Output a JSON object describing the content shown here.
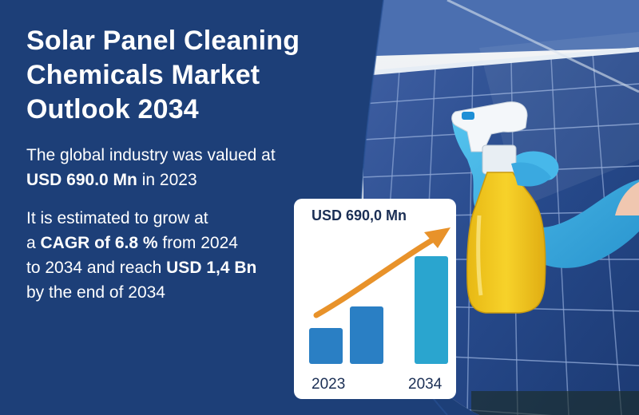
{
  "title_lines": [
    "Solar Panel Cleaning",
    "Chemicals Market",
    "Outlook 2034"
  ],
  "para1": {
    "line1": "The global industry was valued at",
    "value": "USD 690.0 Mn",
    "suffix": " in 2023"
  },
  "para2": {
    "line1": "It is estimated to grow at",
    "prefix2": "a ",
    "cagr": "CAGR of 6.8 %",
    "suffix2": " from 2024",
    "prefix3": "to 2034 and reach ",
    "target": "USD 1,4 Bn",
    "line4": "by the end of 2034"
  },
  "card": {
    "label": "USD 690,0 Mn",
    "year_start": "2023",
    "year_end": "2034"
  },
  "bars": [
    {
      "name": "bar-1",
      "level": 0.33
    },
    {
      "name": "bar-2",
      "level": 0.53
    },
    {
      "name": "bar-3",
      "level": 1.0
    }
  ],
  "colors": {
    "background": "#1d3f78",
    "panel": "#24427a",
    "bar": "#2a7fc4",
    "bar_highlight": "#2aa5cf",
    "arrow": "#e8922a",
    "glove": "#3ab4e6",
    "liquid": "#f0c51c"
  },
  "icons": [
    "solar-panel-photo",
    "spray-bottle",
    "blue-glove",
    "growth-arrow"
  ]
}
